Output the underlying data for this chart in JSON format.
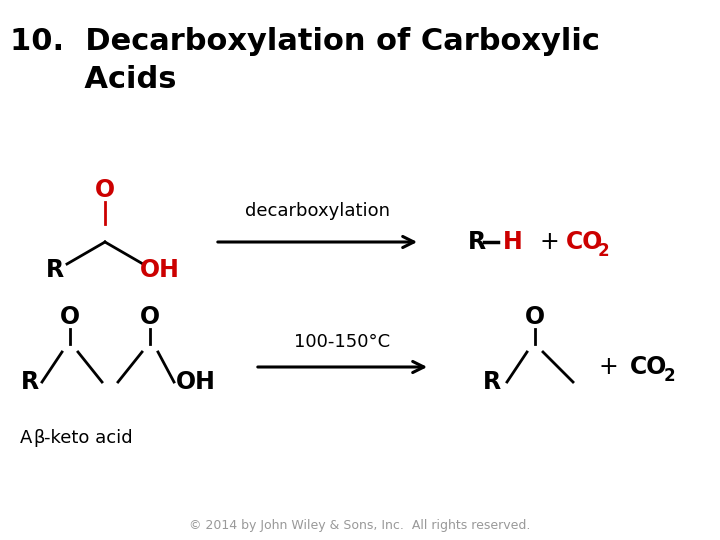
{
  "title_line1": "10.  Decarboxylation of Carboxylic",
  "title_line2": "       Acids",
  "title_bg_color": "#c8c8c8",
  "title_text_color": "#000000",
  "title_fontsize": 22,
  "body_bg_color": "#ffffff",
  "footer_text": "© 2014 by John Wiley & Sons, Inc.  All rights reserved.",
  "footer_color": "#999999",
  "footer_fontsize": 9,
  "red_color": "#cc0000",
  "black_color": "#000000"
}
